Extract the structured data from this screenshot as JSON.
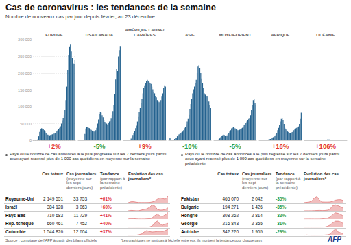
{
  "title": "Cas de coronavirus : les tendances de la semaine",
  "subtitle": "Nombre de nouveaux cas par jour depuis février, au 23 décembre",
  "chart_data": [
    {
      "type": "bar",
      "title": "EUROPE",
      "color": "#24628f",
      "annotation": "+2%",
      "ylim": [
        0,
        300000
      ],
      "grid": true,
      "tick_labels": "y",
      "yticks": [
        0,
        {
          "value": 50000,
          "label": "50 000"
        },
        {
          "value": 100000,
          "label": "100 000"
        },
        {
          "value": 150000,
          "label": "150 000"
        },
        {
          "value": 200000,
          "label": "200 000"
        },
        {
          "value": 250000,
          "label": "250 000"
        },
        {
          "value": 300000,
          "label": "300 000"
        }
      ],
      "values": [
        0,
        0,
        0,
        20,
        300,
        3000,
        12000,
        25000,
        33000,
        36000,
        35000,
        33000,
        30000,
        26000,
        22000,
        19000,
        17000,
        16000,
        15000,
        16000,
        17000,
        18000,
        19000,
        20000,
        22000,
        24000,
        27000,
        30000,
        33000,
        37000,
        42000,
        50000,
        58000,
        66000,
        75000,
        90000,
        120000,
        160000,
        210000,
        255000,
        280000,
        285000,
        265000,
        245000,
        230000,
        228000,
        240000
      ]
    },
    {
      "type": "bar",
      "title": "USA/CANADA",
      "color": "#24628f",
      "annotation": "-5%",
      "ylim": [
        0,
        240000
      ],
      "tick_labels": false,
      "values": [
        0,
        0,
        0,
        0,
        10,
        100,
        1500,
        15000,
        28000,
        32000,
        31000,
        30000,
        29000,
        27000,
        25000,
        23000,
        22000,
        21000,
        21000,
        24000,
        30000,
        40000,
        50000,
        62000,
        68000,
        66000,
        60000,
        55000,
        48000,
        44000,
        42000,
        40000,
        38000,
        42000,
        45000,
        46000,
        52000,
        60000,
        70000,
        85000,
        110000,
        145000,
        170000,
        165000,
        200000,
        215000,
        225000
      ]
    },
    {
      "type": "bar",
      "title": "AMÉRIQUE LATINE/ CARAÏBES",
      "color": "#24628f",
      "annotation": "+9%",
      "ylim": [
        0,
        150000
      ],
      "tick_labels": false,
      "values": [
        0,
        0,
        0,
        0,
        0,
        10,
        100,
        800,
        2500,
        5000,
        8000,
        11000,
        14000,
        18000,
        22000,
        28000,
        35000,
        42000,
        48000,
        55000,
        62000,
        70000,
        78000,
        82000,
        85000,
        88000,
        90000,
        88000,
        87000,
        85000,
        84000,
        80000,
        76000,
        72000,
        70000,
        66000,
        64000,
        60000,
        58000,
        57000,
        58000,
        60000,
        65000,
        70000,
        78000,
        82000,
        80000
      ]
    },
    {
      "type": "bar",
      "title": "ASIE",
      "color": "#24628f",
      "annotation": "-10%",
      "ylim": [
        0,
        150000
      ],
      "tick_labels": false,
      "values": [
        2500,
        3000,
        1500,
        500,
        800,
        1000,
        2000,
        3000,
        4000,
        6000,
        8000,
        9000,
        10000,
        11000,
        12000,
        13000,
        15000,
        18000,
        20000,
        24000,
        28000,
        32000,
        38000,
        46000,
        54000,
        62000,
        70000,
        76000,
        80000,
        85000,
        90000,
        100000,
        110000,
        112000,
        108000,
        100000,
        92000,
        85000,
        78000,
        70000,
        68000,
        65000,
        66000,
        64000,
        58000,
        52000,
        48000
      ]
    },
    {
      "type": "bar",
      "title": "MOYEN-ORIENT",
      "color": "#24628f",
      "annotation": "-5%",
      "ylim": [
        0,
        80000
      ],
      "tick_labels": false,
      "values": [
        0,
        0,
        0,
        10,
        200,
        800,
        1500,
        2500,
        3500,
        4000,
        4500,
        4200,
        3800,
        3500,
        4000,
        5000,
        6000,
        7000,
        8000,
        9500,
        10000,
        10500,
        10000,
        9500,
        9000,
        8500,
        8000,
        8000,
        8500,
        9000,
        9500,
        10000,
        11000,
        12000,
        13000,
        14000,
        15000,
        16000,
        17000,
        18000,
        20000,
        24000,
        28000,
        32000,
        33000,
        30000,
        28000
      ]
    },
    {
      "type": "bar",
      "title": "AFRIQUE",
      "color": "#24628f",
      "annotation": "+16%",
      "ylim": [
        0,
        80000
      ],
      "tick_labels": false,
      "values": [
        0,
        0,
        0,
        0,
        0,
        5,
        30,
        100,
        300,
        500,
        700,
        900,
        1100,
        1500,
        2000,
        2500,
        3000,
        3500,
        4500,
        6000,
        8000,
        10000,
        12000,
        15000,
        17000,
        18000,
        16000,
        13000,
        10000,
        9000,
        8000,
        7000,
        6500,
        6000,
        6000,
        6000,
        6500,
        7000,
        8000,
        9000,
        9500,
        10000,
        10500,
        11000,
        13000,
        17000,
        22000
      ]
    },
    {
      "type": "bar",
      "title": "OCÉANIE",
      "color": "#24628f",
      "annotation": "+106%",
      "ylim": [
        0,
        80000
      ],
      "tick_labels": false,
      "values": [
        0,
        0,
        0,
        0,
        0,
        5,
        50,
        300,
        400,
        250,
        100,
        50,
        30,
        20,
        20,
        30,
        40,
        60,
        70,
        80,
        100,
        150,
        250,
        400,
        500,
        650,
        700,
        650,
        500,
        350,
        250,
        150,
        100,
        80,
        60,
        40,
        40,
        40,
        40,
        40,
        40,
        40,
        40,
        30,
        30,
        40,
        40
      ]
    }
  ],
  "tables": [
    {
      "intro": "Pays où le nombre de cas annoncés a le plus progressé sur les 7 derniers jours parmi ceux ayant recensé plus de 1 000 cas quotidiens en moyenne sur la semaine",
      "headers": [
        {
          "title": "Cas totaux"
        },
        {
          "title": "Cas journaliers",
          "note": "(moyenne sur les sept derniers jours)"
        },
        {
          "title": "Tendance",
          "note": "(par rapport à la semaine précédente)"
        },
        {
          "title": "Évolution des cas journaliers*"
        }
      ],
      "rows": [
        {
          "country": "Royaume-Uni",
          "total": "2 149 551",
          "daily": "33 753",
          "trend": "+61%",
          "sparkline": {
            "type": "line",
            "color": "#e06f6f",
            "ylim": [
              0,
              35000
            ],
            "values": [
              50,
              4500,
              5000,
              2500,
              1000,
              700,
              700,
              800,
              1200,
              3500,
              8000,
              17000,
              24000,
              20000,
              17000,
              32000
            ]
          }
        },
        {
          "country": "Israël",
          "total": "384 128",
          "daily": "3 063",
          "trend": "+60%",
          "sparkline": {
            "type": "line",
            "color": "#e06f6f",
            "ylim": [
              0,
              7000
            ],
            "values": [
              10,
              400,
              300,
              50,
              100,
              800,
              1500,
              2000,
              3500,
              6000,
              5000,
              1500,
              700,
              800,
              1500,
              3000
            ]
          }
        },
        {
          "country": "Pays-Bas",
          "total": "710 683",
          "daily": "11 729",
          "trend": "+41%",
          "sparkline": {
            "type": "line",
            "color": "#e06f6f",
            "ylim": [
              0,
              12000
            ],
            "values": [
              20,
              1000,
              900,
              300,
              150,
              100,
              100,
              300,
              600,
              2000,
              6000,
              9000,
              5500,
              5000,
              7500,
              11500
            ]
          }
        },
        {
          "country": "Rép. tchèque",
          "total": "660 461",
          "daily": "7 452",
          "trend": "+40%",
          "sparkline": {
            "type": "line",
            "color": "#e06f6f",
            "ylim": [
              0,
              13000
            ],
            "values": [
              5,
              200,
              150,
              70,
              80,
              150,
              150,
              250,
              600,
              2500,
              8000,
              12000,
              6000,
              4000,
              6000,
              7500
            ]
          }
        },
        {
          "country": "Colombie",
          "total": "1 544 826",
          "daily": "12 604",
          "trend": "+37%",
          "sparkline": {
            "type": "line",
            "color": "#e06f6f",
            "ylim": [
              0,
              14000
            ],
            "values": [
              5,
              100,
              200,
              500,
              1500,
              3000,
              7000,
              10000,
              8000,
              7000,
              7500,
              8000,
              8500,
              8000,
              10000,
              12600
            ]
          }
        }
      ]
    },
    {
      "intro": "Pays où le nombre de cas annoncés a le plus régressé sur les 7 derniers jours parmi ceux ayant recensé plus de 1 000 cas quotidiens en moyenne sur la semaine précédente",
      "headers": [
        {
          "title": "Cas totaux"
        },
        {
          "title": "Cas journaliers",
          "note": "(moyenne sur les sept derniers jours)"
        },
        {
          "title": "Tendance",
          "note": "(par rapport à la semaine précédente)"
        },
        {
          "title": "Évolution des cas journaliers*"
        }
      ],
      "rows": [
        {
          "country": "Pakistan",
          "total": "465 070",
          "daily": "2 042",
          "trend": "-35%",
          "sparkline": {
            "type": "line",
            "color": "#e06f6f",
            "ylim": [
              0,
              7000
            ],
            "values": [
              5,
              300,
              600,
              1500,
              4500,
              6000,
              2500,
              700,
              600,
              600,
              700,
              1500,
              2500,
              3000,
              3000,
              2100
            ]
          }
        },
        {
          "country": "Bulgarie",
          "total": "194 271",
          "daily": "1 426",
          "trend": "-35%",
          "sparkline": {
            "type": "line",
            "color": "#e06f6f",
            "ylim": [
              0,
              4000
            ],
            "values": [
              0,
              30,
              40,
              50,
              100,
              200,
              250,
              150,
              200,
              400,
              1200,
              3000,
              3500,
              3000,
              2300,
              1400
            ]
          }
        },
        {
          "country": "Hongrie",
          "total": "308 262",
          "daily": "2 814",
          "trend": "-32%",
          "sparkline": {
            "type": "line",
            "color": "#e06f6f",
            "ylim": [
              0,
              6500
            ],
            "values": [
              0,
              40,
              80,
              50,
              20,
              20,
              30,
              200,
              800,
              1000,
              2000,
              4500,
              6000,
              5500,
              4500,
              2800
            ]
          }
        },
        {
          "country": "Géorgie",
          "total": "216 843",
          "daily": "2 355",
          "trend": "-31%",
          "sparkline": {
            "type": "line",
            "color": "#e06f6f",
            "ylim": [
              0,
              4500
            ],
            "values": [
              0,
              10,
              15,
              10,
              5,
              5,
              10,
              50,
              200,
              700,
              1500,
              3000,
              4000,
              4000,
              3500,
              2300
            ]
          }
        },
        {
          "country": "Autriche",
          "total": "342 220",
          "daily": "1 965",
          "trend": "-29%",
          "sparkline": {
            "type": "line",
            "color": "#e06f6f",
            "ylim": [
              0,
              8000
            ],
            "values": [
              10,
              600,
              300,
              80,
              50,
              80,
              120,
              200,
              500,
              800,
              1500,
              5000,
              7500,
              4000,
              3000,
              2000
            ]
          }
        }
      ]
    }
  ],
  "source": "Source : comptage de l'AFP à partir des bilans officiels",
  "footnote": "*Les graphiques ne sont pas à l'échelle entre eux, ils montrent la tendance pour chaque pays",
  "logo": "AFP"
}
